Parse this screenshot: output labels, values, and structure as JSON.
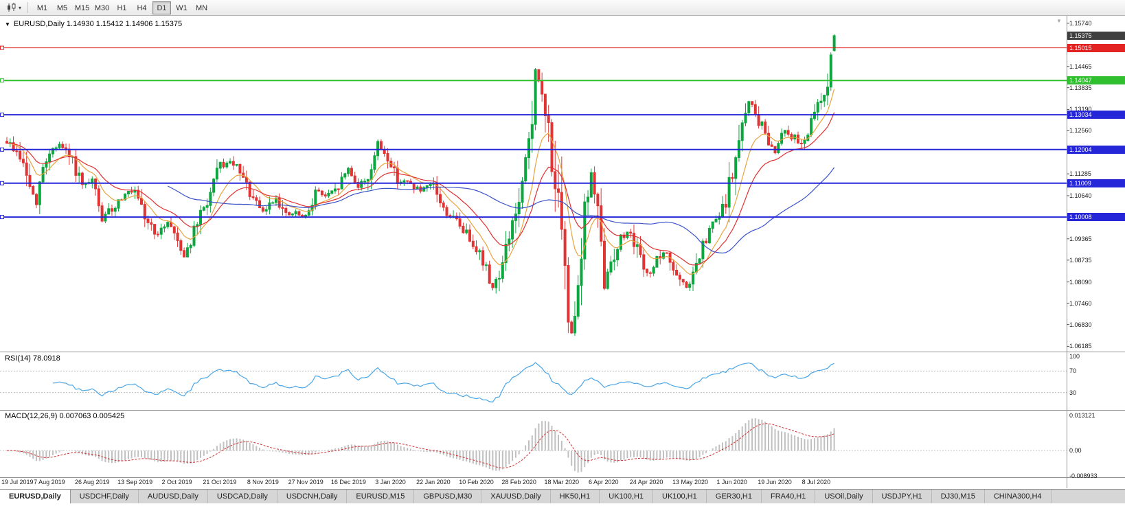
{
  "toolbar": {
    "timeframes": [
      "M1",
      "M5",
      "M15",
      "M30",
      "H1",
      "H4",
      "D1",
      "W1",
      "MN"
    ],
    "active_timeframe": "D1"
  },
  "icons": {
    "collapse_arrow": "▼",
    "dropdown_arrow": "▾",
    "shift_marker": "▼"
  },
  "chart": {
    "title": "EURUSD,Daily 1.14930 1.15412 1.14906 1.15375"
  },
  "indicators": {
    "rsi": {
      "label": "RSI(14) 78.0918"
    },
    "macd": {
      "label": "MACD(12,26,9) 0.007063 0.005425"
    }
  },
  "tabs": [
    "EURUSD,Daily",
    "USDCHF,Daily",
    "AUDUSD,Daily",
    "USDCAD,Daily",
    "USDCNH,Daily",
    "EURUSD,M15",
    "GBPUSD,M30",
    "XAUUSD,Daily",
    "HK50,H1",
    "UK100,H1",
    "UK100,H1",
    "GER30,H1",
    "FRA40,H1",
    "USOil,Daily",
    "USDJPY,H1",
    "DJ30,M15",
    "CHINA300,H4"
  ],
  "active_tab": "EURUSD,Daily",
  "chart_data": {
    "type": "candlestick",
    "symbol": "EURUSD",
    "timeframe": "Daily",
    "ohlc_current": {
      "open": "1.14930",
      "high": "1.15412",
      "low": "1.14906",
      "close": "1.15375"
    },
    "bar_count": 253,
    "bars_per_label": 13,
    "x_labels": [
      "19 Jul 2019",
      "7 Aug 2019",
      "26 Aug 2019",
      "13 Sep 2019",
      "2 Oct 2019",
      "21 Oct 2019",
      "8 Nov 2019",
      "27 Nov 2019",
      "16 Dec 2019",
      "3 Jan 2020",
      "22 Jan 2020",
      "10 Feb 2020",
      "28 Feb 2020",
      "18 Mar 2020",
      "6 Apr 2020",
      "24 Apr 2020",
      "13 May 2020",
      "1 Jun 2020",
      "19 Jun 2020",
      "8 Jul 2020"
    ],
    "price_axis": {
      "max": 1.159,
      "min": 1.0605,
      "ticks": [
        "1.15740",
        "1.14465",
        "1.13835",
        "1.13190",
        "1.12560",
        "1.11285",
        "1.10640",
        "1.09365",
        "1.08735",
        "1.08090",
        "1.07460",
        "1.06830",
        "1.06185"
      ]
    },
    "current_price": {
      "label": "1.15375",
      "value": 1.15375,
      "bg": "#3f3f3f"
    },
    "levels": [
      {
        "label": "1.15015",
        "value": 1.15015,
        "color": "#e32222",
        "width": 1
      },
      {
        "label": "1.14047",
        "value": 1.14047,
        "color": "#2fbf2f",
        "width": 2
      },
      {
        "label": "1.13034",
        "value": 1.13034,
        "color": "#2626d9",
        "width": 2
      },
      {
        "label": "1.12004",
        "value": 1.12004,
        "color": "#2626d9",
        "width": 2
      },
      {
        "label": "1.11009",
        "value": 1.11009,
        "color": "#2626d9",
        "width": 2
      },
      {
        "label": "1.10008",
        "value": 1.10008,
        "color": "#2626d9",
        "width": 2
      }
    ],
    "moving_averages": [
      {
        "period": 10,
        "type": "ema",
        "color": "#e8a33d"
      },
      {
        "period": 21,
        "type": "ema",
        "color": "#e03030"
      },
      {
        "period": 50,
        "type": "sma",
        "color": "#3a52c8"
      }
    ],
    "up_color": "#0da63f",
    "down_color": "#e03535",
    "last_candle": [
      1.1493,
      1.15412,
      1.14906,
      1.15375
    ],
    "price_path_anchors": [
      [
        0,
        1.1225
      ],
      [
        4,
        1.118
      ],
      [
        8,
        1.1065
      ],
      [
        9,
        1.1028
      ],
      [
        10,
        1.1105
      ],
      [
        13,
        1.1195
      ],
      [
        16,
        1.1215
      ],
      [
        20,
        1.1165
      ],
      [
        23,
        1.109
      ],
      [
        26,
        1.1105
      ],
      [
        29,
        1.0995
      ],
      [
        33,
        1.1035
      ],
      [
        36,
        1.1075
      ],
      [
        39,
        1.1068
      ],
      [
        42,
        1.1
      ],
      [
        46,
        1.0945
      ],
      [
        49,
        1.099
      ],
      [
        52,
        1.0935
      ],
      [
        54,
        1.0885
      ],
      [
        58,
        1.098
      ],
      [
        62,
        1.107
      ],
      [
        65,
        1.1155
      ],
      [
        69,
        1.116
      ],
      [
        72,
        1.111
      ],
      [
        76,
        1.1035
      ],
      [
        78,
        1.1015
      ],
      [
        82,
        1.106
      ],
      [
        85,
        1.1005
      ],
      [
        88,
        1.1012
      ],
      [
        91,
        1.0995
      ],
      [
        94,
        1.108
      ],
      [
        97,
        1.1062
      ],
      [
        100,
        1.1075
      ],
      [
        104,
        1.1145
      ],
      [
        107,
        1.1092
      ],
      [
        110,
        1.112
      ],
      [
        113,
        1.1213
      ],
      [
        116,
        1.1178
      ],
      [
        119,
        1.1112
      ],
      [
        123,
        1.1098
      ],
      [
        126,
        1.1078
      ],
      [
        130,
        1.1095
      ],
      [
        133,
        1.1022
      ],
      [
        137,
        1.0988
      ],
      [
        140,
        1.0952
      ],
      [
        143,
        1.0915
      ],
      [
        146,
        1.0842
      ],
      [
        148,
        1.0792
      ],
      [
        151,
        1.0858
      ],
      [
        154,
        1.0988
      ],
      [
        156,
        1.1035
      ],
      [
        158,
        1.1138
      ],
      [
        160,
        1.1288
      ],
      [
        161,
        1.1455
      ],
      [
        163,
        1.1342
      ],
      [
        165,
        1.1262
      ],
      [
        167,
        1.1102
      ],
      [
        169,
        1.0922
      ],
      [
        171,
        1.0702
      ],
      [
        172,
        1.0662
      ],
      [
        174,
        1.0812
      ],
      [
        176,
        1.1012
      ],
      [
        178,
        1.1132
      ],
      [
        180,
        1.0992
      ],
      [
        182,
        1.0802
      ],
      [
        184,
        1.0868
      ],
      [
        187,
        1.0938
      ],
      [
        190,
        1.0962
      ],
      [
        193,
        1.0872
      ],
      [
        195,
        1.0828
      ],
      [
        198,
        1.0872
      ],
      [
        201,
        1.0898
      ],
      [
        204,
        1.0822
      ],
      [
        207,
        1.0792
      ],
      [
        209,
        1.0828
      ],
      [
        212,
        1.0908
      ],
      [
        215,
        1.0978
      ],
      [
        218,
        1.1018
      ],
      [
        221,
        1.1128
      ],
      [
        224,
        1.1258
      ],
      [
        226,
        1.1352
      ],
      [
        228,
        1.1302
      ],
      [
        231,
        1.1248
      ],
      [
        234,
        1.1192
      ],
      [
        236,
        1.1262
      ],
      [
        239,
        1.1242
      ],
      [
        242,
        1.1218
      ],
      [
        245,
        1.1272
      ],
      [
        247,
        1.1332
      ],
      [
        249,
        1.1362
      ],
      [
        250,
        1.1412
      ],
      [
        251,
        1.1488
      ],
      [
        252,
        1.1537
      ]
    ],
    "rsi": {
      "period": 14,
      "value": "78.0918",
      "color": "#4aa6e8",
      "scale": [
        {
          "v": 100,
          "label": "100"
        },
        {
          "v": 70,
          "label": "70"
        },
        {
          "v": 30,
          "label": "30"
        }
      ],
      "guides": [
        70,
        30
      ]
    },
    "macd": {
      "fast": 12,
      "slow": 26,
      "signal_period": 9,
      "value": "0.007063",
      "signal_value": "0.005425",
      "max": 0.013121,
      "min": -0.008933,
      "scale": [
        {
          "v": 0.013121,
          "label": "0.013121"
        },
        {
          "v": 0,
          "label": "0.00"
        },
        {
          "v": -0.008933,
          "label": "-0.008933"
        }
      ],
      "hist_color": "#c0c0c0",
      "signal_color": "#cf3030"
    }
  }
}
